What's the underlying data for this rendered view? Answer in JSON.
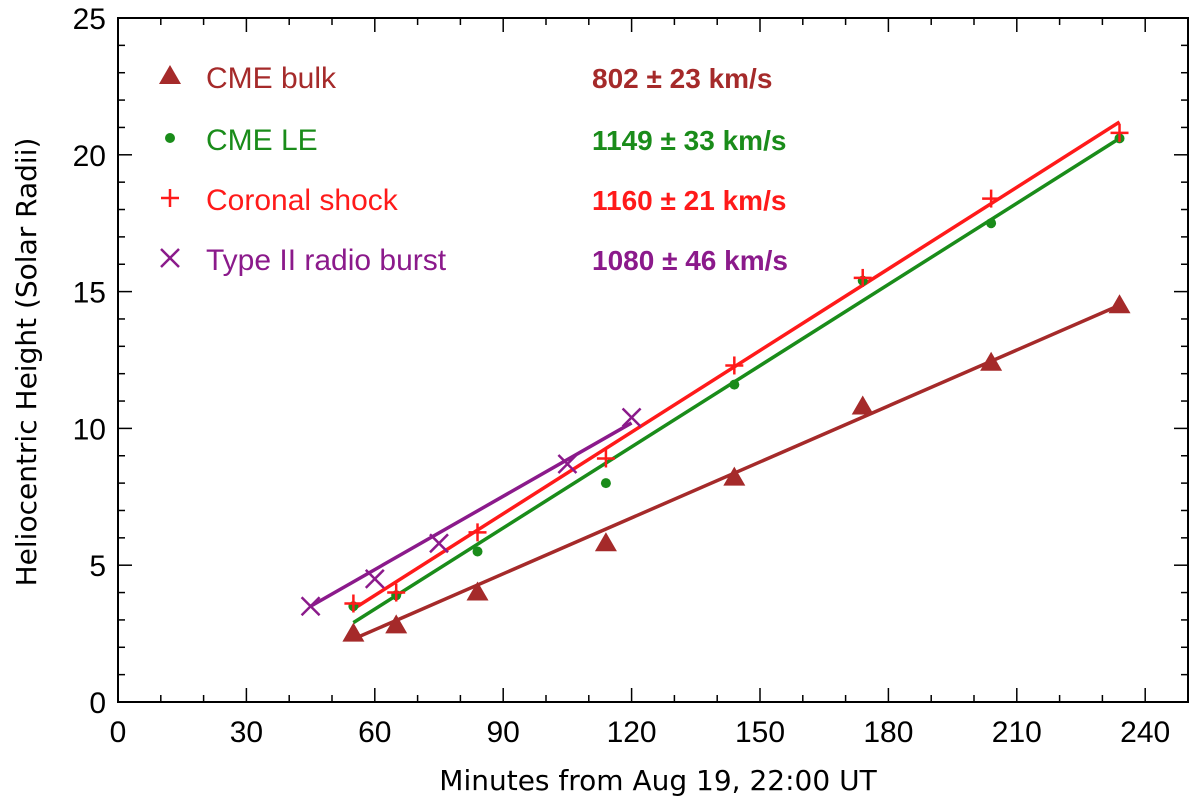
{
  "chart_data": {
    "type": "scatter",
    "title": "",
    "xlabel": "Minutes from  Aug 19, 22:00 UT",
    "ylabel": "Heliocentric Height (Solar Radii)",
    "xlim": [
      0,
      250
    ],
    "ylim": [
      0,
      25
    ],
    "xticks": [
      0,
      30,
      60,
      90,
      120,
      150,
      180,
      210,
      240
    ],
    "yticks": [
      0,
      5,
      10,
      15,
      20,
      25
    ],
    "xtick_labels": [
      "0",
      "30",
      "60",
      "90",
      "120",
      "150",
      "180",
      "210",
      "240"
    ],
    "ytick_labels": [
      "0",
      "5",
      "10",
      "15",
      "20",
      "25"
    ],
    "x_minor_step": 10,
    "y_minor_step": 1,
    "grid": false,
    "legend_position": "top-left",
    "series": [
      {
        "name": "CME bulk",
        "speed_label": "802 ± 23 km/s",
        "marker": "triangle",
        "color": "#a52a2a",
        "x": [
          55,
          65,
          84,
          114,
          144,
          174,
          204,
          234
        ],
        "y": [
          2.5,
          2.8,
          4.0,
          5.8,
          8.2,
          10.8,
          12.4,
          14.5
        ],
        "fit": [
          [
            55,
            2.3
          ],
          [
            234,
            14.5
          ]
        ]
      },
      {
        "name": "CME LE",
        "speed_label": "1149 ± 33 km/s",
        "marker": "dot",
        "color": "#1a8c1a",
        "x": [
          55,
          65,
          84,
          114,
          144,
          174,
          204,
          234
        ],
        "y": [
          3.5,
          3.9,
          5.5,
          8.0,
          11.6,
          15.4,
          17.5,
          20.6
        ],
        "fit": [
          [
            55,
            2.9
          ],
          [
            234,
            20.6
          ]
        ]
      },
      {
        "name": "Coronal shock",
        "speed_label": "1160 ± 21 km/s",
        "marker": "plus",
        "color": "#ff1a1a",
        "x": [
          55,
          65,
          84,
          114,
          144,
          174,
          204,
          234
        ],
        "y": [
          3.6,
          4.0,
          6.2,
          8.9,
          12.3,
          15.5,
          18.4,
          20.8
        ],
        "fit": [
          [
            55,
            3.4
          ],
          [
            234,
            21.2
          ]
        ]
      },
      {
        "name": "Type II radio burst",
        "speed_label": "1080 ± 46 km/s",
        "marker": "cross",
        "color": "#8b1a8b",
        "x": [
          45,
          60,
          75,
          105,
          120
        ],
        "y": [
          3.5,
          4.5,
          5.8,
          8.7,
          10.4
        ],
        "fit": [
          [
            45,
            3.5
          ],
          [
            120,
            10.2
          ]
        ]
      }
    ]
  }
}
